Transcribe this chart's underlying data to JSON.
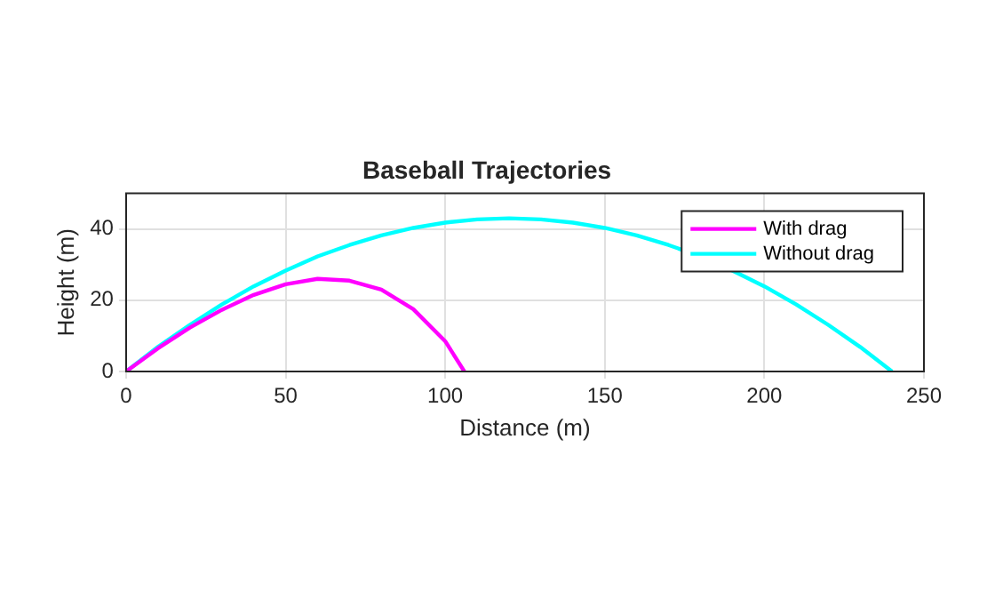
{
  "chart_data": {
    "type": "line",
    "title": "Baseball Trajectories",
    "xlabel": "Distance (m)",
    "ylabel": "Height (m)",
    "xlim": [
      0,
      250
    ],
    "xticks": [
      0,
      50,
      100,
      150,
      200,
      250
    ],
    "ylim": [
      0,
      50
    ],
    "yticks": [
      0,
      20,
      40
    ],
    "grid": true,
    "legend": "top right",
    "marker": "none",
    "line_style": "solid",
    "series": [
      {
        "name": "With drag",
        "color": "#ff00ff",
        "x": [
          0,
          10,
          20,
          30,
          40,
          50,
          60,
          70,
          80,
          90,
          100,
          106
        ],
        "values": [
          0,
          6.5,
          12.3,
          17.3,
          21.5,
          24.5,
          26,
          25.5,
          23,
          17.5,
          8.5,
          0
        ]
      },
      {
        "name": "Without drag",
        "color": "#00ffff",
        "x": [
          0,
          10,
          20,
          30,
          40,
          50,
          60,
          70,
          80,
          90,
          100,
          110,
          120,
          130,
          140,
          150,
          160,
          170,
          180,
          190,
          200,
          210,
          220,
          230,
          240
        ],
        "values": [
          0,
          6.9,
          13.1,
          18.8,
          23.9,
          28.3,
          32.3,
          35.5,
          38.2,
          40.3,
          41.8,
          42.7,
          43,
          42.7,
          41.8,
          40.3,
          38.2,
          35.5,
          32.3,
          28.3,
          23.9,
          18.8,
          13.1,
          6.9,
          0
        ]
      }
    ]
  }
}
